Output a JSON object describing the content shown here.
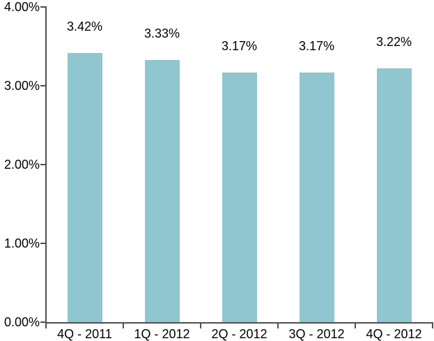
{
  "chart_data": {
    "type": "bar",
    "title": "",
    "xlabel": "",
    "ylabel": "",
    "categories": [
      "4Q - 2011",
      "1Q - 2012",
      "2Q - 2012",
      "3Q - 2012",
      "4Q - 2012"
    ],
    "values": [
      3.42,
      3.33,
      3.17,
      3.17,
      3.22
    ],
    "value_labels": [
      "3.42%",
      "3.33%",
      "3.17%",
      "3.17%",
      "3.22%"
    ],
    "ylim": [
      0,
      4
    ],
    "ytick_values": [
      0,
      1,
      2,
      3,
      4
    ],
    "ytick_labels": [
      "0.00%",
      "1.00%",
      "2.00%",
      "3.00%",
      "4.00%"
    ],
    "grid": false,
    "legend": "none",
    "colors": {
      "bar_fill": "#8FC6CF",
      "axis_line": "#4F4F4F",
      "text": "#000000",
      "background": "#FFFFFF"
    }
  }
}
